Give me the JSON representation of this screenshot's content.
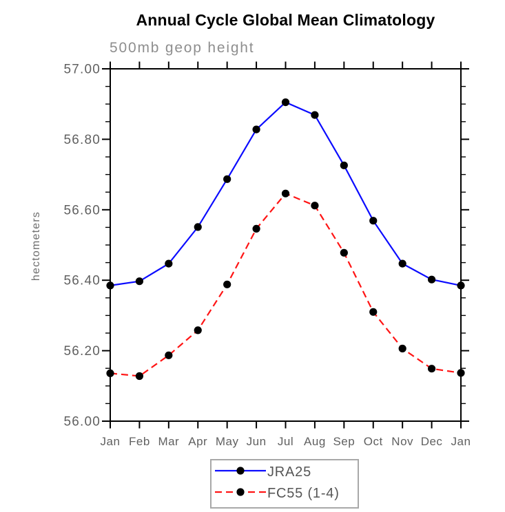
{
  "title": "Annual Cycle Global Mean Climatology",
  "subtitle": "500mb geop height",
  "ylabel": "hectometers",
  "colors": {
    "series1": "#0b0bff",
    "series2": "#ff1414",
    "marker": "#000000",
    "axis": "#000000",
    "axis_text": "#606060",
    "subtitle_text": "#8e8e8e",
    "legend_border": "#a8a8a8"
  },
  "chart_data": {
    "type": "line",
    "title": "Annual Cycle Global Mean Climatology",
    "subtitle": "500mb geop height",
    "xlabel": "",
    "ylabel": "hectometers",
    "categories": [
      "Jan",
      "Feb",
      "Mar",
      "Apr",
      "May",
      "Jun",
      "Jul",
      "Aug",
      "Sep",
      "Oct",
      "Nov",
      "Dec",
      "Jan"
    ],
    "series": [
      {
        "name": "JRA25",
        "color": "#0b0bff",
        "line_style": "solid",
        "marker": "filled-circle",
        "values": [
          56.385,
          56.397,
          56.447,
          56.551,
          56.687,
          56.828,
          56.905,
          56.869,
          56.726,
          56.569,
          56.447,
          56.402,
          56.385
        ]
      },
      {
        "name": "FC55 (1-4)",
        "color": "#ff1414",
        "line_style": "dashed",
        "marker": "filled-circle",
        "values": [
          56.136,
          56.128,
          56.187,
          56.258,
          56.388,
          56.546,
          56.646,
          56.612,
          56.478,
          56.31,
          56.206,
          56.149,
          56.137
        ]
      }
    ],
    "ylim": [
      56.0,
      57.0
    ],
    "ytick_major_step": 0.2,
    "ytick_minor_step": 0.05,
    "ytick_labels": [
      "56.00",
      "56.20",
      "56.40",
      "56.60",
      "56.80",
      "57.00"
    ],
    "grid": false,
    "legend_position": "bottom-center"
  }
}
